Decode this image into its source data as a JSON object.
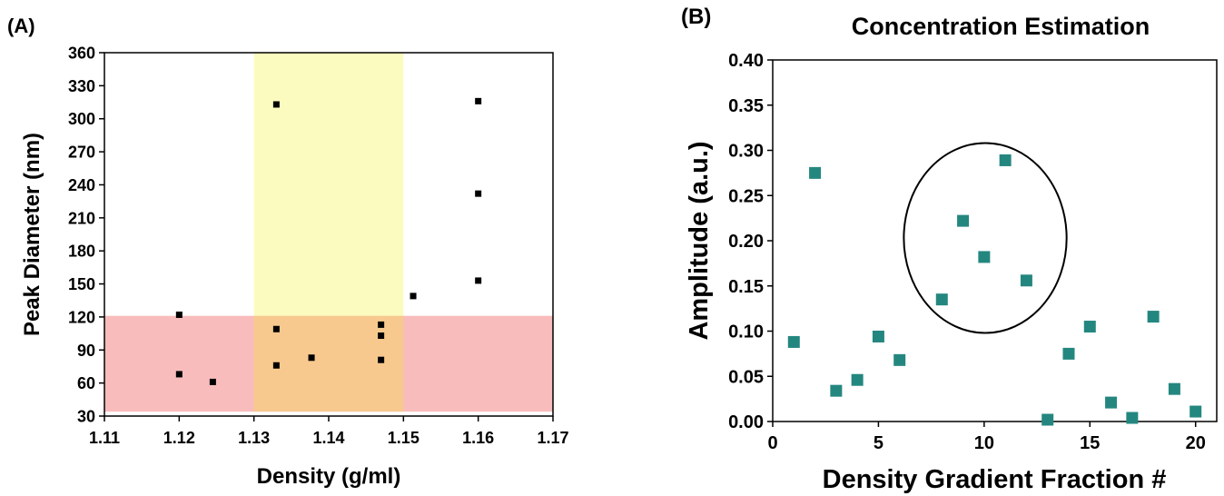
{
  "chart_data": [
    {
      "panel_label": "(A)",
      "type": "scatter",
      "title": "",
      "xlabel": "Density (g/ml)",
      "ylabel": "Peak Diameter (nm)",
      "xlim": [
        1.11,
        1.17
      ],
      "ylim": [
        30,
        360
      ],
      "xticks": [
        "1.11",
        "1.12",
        "1.13",
        "1.14",
        "1.15",
        "1.16",
        "1.17"
      ],
      "yticks": [
        "30",
        "60",
        "90",
        "120",
        "150",
        "180",
        "210",
        "240",
        "270",
        "300",
        "330",
        "360"
      ],
      "grid": false,
      "shaded_regions": [
        {
          "x": [
            1.11,
            1.17
          ],
          "y": [
            34,
            121
          ],
          "color": "#f9bcbc"
        },
        {
          "x": [
            1.13,
            1.15
          ],
          "y": [
            121,
            360
          ],
          "color": "#fbfbbf"
        },
        {
          "x": [
            1.13,
            1.15
          ],
          "y": [
            34,
            121
          ],
          "color": "#f7c98e"
        }
      ],
      "series": [
        {
          "color": "#000000",
          "points": [
            {
              "x": 1.12,
              "y": 122
            },
            {
              "x": 1.12,
              "y": 68
            },
            {
              "x": 1.1245,
              "y": 61
            },
            {
              "x": 1.133,
              "y": 313
            },
            {
              "x": 1.133,
              "y": 109
            },
            {
              "x": 1.133,
              "y": 76
            },
            {
              "x": 1.1377,
              "y": 83
            },
            {
              "x": 1.147,
              "y": 113
            },
            {
              "x": 1.147,
              "y": 103
            },
            {
              "x": 1.147,
              "y": 81
            },
            {
              "x": 1.1513,
              "y": 139
            },
            {
              "x": 1.16,
              "y": 316
            },
            {
              "x": 1.16,
              "y": 232
            },
            {
              "x": 1.16,
              "y": 153
            }
          ]
        }
      ]
    },
    {
      "panel_label": "(B)",
      "type": "scatter",
      "title": "Concentration Estimation",
      "xlabel": "Density Gradient Fraction #",
      "ylabel": "Amplitude (a.u.)",
      "xlim": [
        0,
        21
      ],
      "ylim": [
        0,
        0.4
      ],
      "xticks": [
        "0",
        "5",
        "10",
        "15",
        "20"
      ],
      "yticks": [
        "0.00",
        "0.05",
        "0.10",
        "0.15",
        "0.20",
        "0.25",
        "0.30",
        "0.35",
        "0.40"
      ],
      "grid": false,
      "annotation": {
        "shape": "ellipse",
        "center": {
          "x": 10.05,
          "y": 0.203
        },
        "rx": 3.85,
        "ry": 0.105
      },
      "series": [
        {
          "color": "#24877f",
          "points": [
            {
              "x": 1,
              "y": 0.088
            },
            {
              "x": 2,
              "y": 0.275
            },
            {
              "x": 3,
              "y": 0.034
            },
            {
              "x": 4,
              "y": 0.046
            },
            {
              "x": 5,
              "y": 0.094
            },
            {
              "x": 6,
              "y": 0.068
            },
            {
              "x": 8,
              "y": 0.135
            },
            {
              "x": 9,
              "y": 0.222
            },
            {
              "x": 10,
              "y": 0.182
            },
            {
              "x": 11,
              "y": 0.289
            },
            {
              "x": 12,
              "y": 0.156
            },
            {
              "x": 13,
              "y": 0.002
            },
            {
              "x": 14,
              "y": 0.075
            },
            {
              "x": 15,
              "y": 0.105
            },
            {
              "x": 16,
              "y": 0.021
            },
            {
              "x": 17,
              "y": 0.004
            },
            {
              "x": 18,
              "y": 0.116
            },
            {
              "x": 19,
              "y": 0.036
            },
            {
              "x": 20,
              "y": 0.011
            }
          ]
        }
      ]
    }
  ]
}
